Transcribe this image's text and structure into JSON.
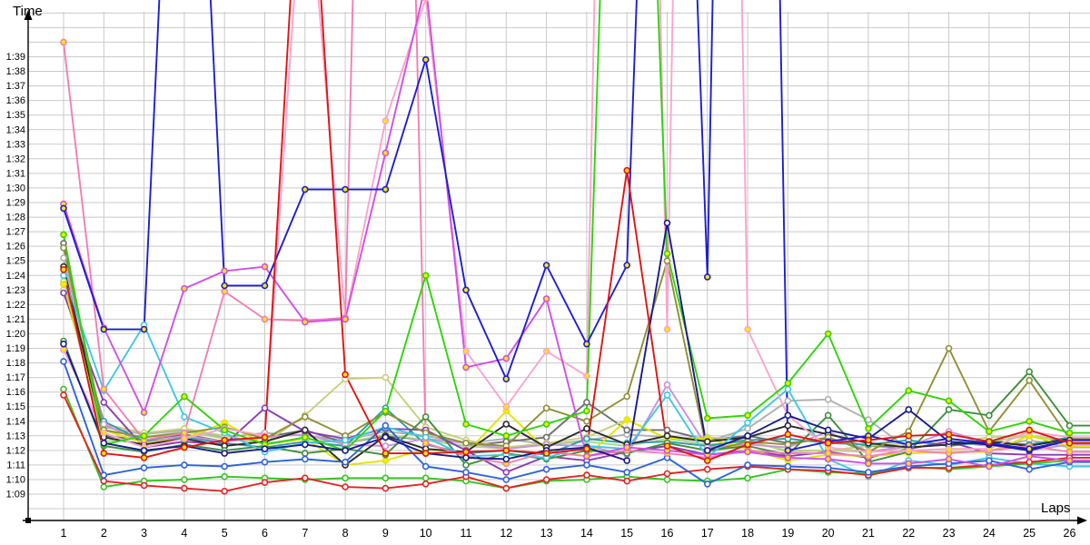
{
  "chart_data": {
    "type": "line",
    "title": "",
    "x_label": "Laps",
    "y_label": "Time",
    "x": [
      1,
      2,
      3,
      4,
      5,
      6,
      7,
      8,
      9,
      10,
      11,
      12,
      13,
      14,
      15,
      16,
      17,
      18,
      19,
      20,
      21,
      22,
      23,
      24,
      25,
      26
    ],
    "x_tick_labels": [
      "1",
      "2",
      "3",
      "4",
      "5",
      "6",
      "7",
      "8",
      "9",
      "10",
      "11",
      "12",
      "13",
      "14",
      "15",
      "16",
      "17",
      "18",
      "19",
      "20",
      "21",
      "22",
      "23",
      "24",
      "25",
      "26"
    ],
    "y_tick_labels": [
      "1:39",
      "1:38",
      "1:37",
      "1:36",
      "1:35",
      "1:34",
      "1:33",
      "1:32",
      "1:31",
      "1:30",
      "1:29",
      "1:28",
      "1:27",
      "1:26",
      "1:25",
      "1:24",
      "1:23",
      "1:22",
      "1:21",
      "1:20",
      "1:19",
      "1:18",
      "1:17",
      "1:16",
      "1:15",
      "1:14",
      "1:13",
      "1:12",
      "1:11",
      "1:10",
      "1:09"
    ],
    "y_min_seconds": 69,
    "y_max_seconds": 102,
    "grid": true,
    "grid_color": "#c9c9c9",
    "axis_color": "#000000",
    "marker_yellow": "#ffe800",
    "marker_white": "#ffffff",
    "legend_position": "none",
    "series": [
      {
        "name": "silver",
        "color": "#b0b0b0",
        "marker": "white",
        "values_seconds": [
          85.2,
          73.6,
          73.1,
          73.4,
          72.9,
          73.2,
          73.0,
          72.7,
          73.3,
          73.0,
          72.5,
          72.8,
          72.4,
          72.7,
          73.1,
          72.9,
          72.6,
          73.5,
          75.4,
          75.5,
          74.1,
          72.1,
          72.6,
          72.3,
          72.7,
          72.2
        ]
      },
      {
        "name": "dark-gray",
        "color": "#6e6e6e",
        "marker": "white",
        "values_seconds": [
          86.2,
          73.0,
          72.7,
          73.1,
          72.6,
          72.9,
          73.4,
          72.5,
          73.0,
          72.7,
          72.3,
          72.6,
          72.9,
          75.3,
          73.4,
          73.4,
          72.7,
          73.0,
          72.5,
          72.8,
          72.3,
          72.2,
          72.4,
          72.7,
          72.3,
          72.9
        ]
      },
      {
        "name": "light-green",
        "color": "#a8d88a",
        "marker": "white",
        "values_seconds": [
          83.6,
          72.6,
          72.9,
          73.3,
          72.8,
          72.5,
          72.8,
          72.5,
          73.1,
          72.7,
          72.3,
          72.1,
          72.4,
          72.6,
          72.3,
          72.8,
          72.4,
          72.6,
          72.0,
          72.0,
          71.9,
          72.2,
          72.4,
          72.6,
          73.0,
          72.7
        ]
      },
      {
        "name": "khaki",
        "color": "#c6cf7a",
        "marker": "white",
        "values_seconds": [
          83.0,
          73.8,
          73.2,
          73.5,
          73.0,
          72.5,
          74.4,
          76.9,
          77.0,
          73.6,
          72.7,
          72.2,
          72.5,
          72.9,
          74.1,
          72.8,
          72.9,
          72.7,
          71.9,
          72.0,
          72.3,
          72.5,
          72.5,
          72.9,
          73.0,
          72.6
        ]
      },
      {
        "name": "teal",
        "color": "#2e9ba8",
        "marker": "white",
        "values_seconds": [
          83.4,
          74.0,
          72.6,
          72.9,
          72.5,
          72.2,
          72.6,
          72.3,
          74.9,
          72.4,
          71.8,
          72.0,
          71.7,
          72.8,
          72.5,
          72.6,
          72.3,
          72.7,
          72.8,
          72.5,
          72.4,
          72.7,
          72.3,
          72.6,
          72.4,
          72.9
        ]
      },
      {
        "name": "orchid",
        "color": "#c98fe0",
        "marker": "white",
        "values_seconds": [
          84.0,
          73.8,
          72.5,
          73.0,
          72.6,
          72.9,
          73.1,
          72.4,
          72.3,
          72.8,
          72.5,
          72.1,
          72.4,
          72.3,
          71.7,
          76.5,
          72.2,
          72.4,
          72.2,
          73.3,
          71.9,
          72.3,
          73.3,
          72.5,
          72.0,
          72.4
        ]
      },
      {
        "name": "purple",
        "color": "#8a3bb5",
        "marker": "white",
        "values_seconds": [
          82.8,
          75.3,
          72.2,
          72.6,
          72.4,
          74.9,
          73.3,
          72.8,
          73.5,
          73.4,
          72.0,
          70.5,
          71.6,
          71.3,
          71.9,
          72.3,
          71.7,
          72.0,
          71.6,
          71.9,
          71.5,
          72.1,
          72.6,
          71.8,
          71.7,
          71.7
        ]
      },
      {
        "name": "yellow",
        "color": "#e3e300",
        "marker": "yellow",
        "values_seconds": [
          83.4,
          73.4,
          72.5,
          72.8,
          73.9,
          72.4,
          72.8,
          71.0,
          71.3,
          72.1,
          71.8,
          74.7,
          72.0,
          71.6,
          74.1,
          72.8,
          72.8,
          72.1,
          71.3,
          71.7,
          71.6,
          71.8,
          71.9,
          71.9,
          73.0,
          72.3
        ]
      },
      {
        "name": "black",
        "color": "#2b2b2b",
        "marker": "white",
        "values_seconds": [
          84.6,
          72.9,
          72.4,
          72.8,
          72.3,
          72.6,
          73.4,
          71.0,
          73.0,
          72.1,
          71.9,
          73.8,
          72.2,
          73.5,
          72.4,
          73.0,
          72.6,
          72.9,
          73.7,
          73.1,
          72.5,
          72.2,
          72.4,
          72.6,
          72.3,
          72.8
        ]
      },
      {
        "name": "olive",
        "color": "#8f8f33",
        "marker": "white",
        "values_seconds": [
          85.9,
          73.4,
          72.9,
          73.2,
          73.6,
          72.8,
          74.3,
          73.0,
          74.6,
          73.2,
          72.5,
          72.3,
          74.9,
          74.0,
          75.7,
          85.0,
          71.9,
          72.6,
          72.4,
          72.9,
          71.9,
          73.3,
          79.0,
          73.3,
          76.8,
          72.8
        ]
      },
      {
        "name": "dark-green",
        "color": "#3d8f3d",
        "marker": "white",
        "values_seconds": [
          79.5,
          72.3,
          71.9,
          72.4,
          72.0,
          72.3,
          71.8,
          72.1,
          71.7,
          74.3,
          71.0,
          71.8,
          71.4,
          72.0,
          71.8,
          72.5,
          72.0,
          72.3,
          71.7,
          74.4,
          71.2,
          71.9,
          74.8,
          74.4,
          77.4,
          73.7
        ]
      },
      {
        "name": "cyan",
        "color": "#3ec8e0",
        "marker": "white",
        "values_seconds": [
          84.0,
          76.1,
          80.6,
          74.3,
          73.2,
          71.9,
          72.5,
          72.7,
          73.6,
          72.9,
          71.6,
          71.7,
          71.5,
          72.3,
          72.1,
          75.8,
          71.5,
          73.9,
          76.2,
          71.4,
          70.2,
          71.3,
          71.0,
          71.5,
          71.1,
          70.9
        ]
      },
      {
        "name": "lime-green",
        "color": "#36c422",
        "marker": "white",
        "values_seconds": [
          76.2,
          69.5,
          69.9,
          70.0,
          70.2,
          70.1,
          70.0,
          70.1,
          70.1,
          70.1,
          69.9,
          69.4,
          69.9,
          70.0,
          70.2,
          70.0,
          69.9,
          70.1,
          70.7,
          70.5,
          70.4,
          70.9,
          70.7,
          70.9,
          71.1,
          71.3
        ]
      },
      {
        "name": "scarlet",
        "color": "#e62222",
        "marker": "white",
        "values_seconds": [
          75.8,
          69.9,
          69.6,
          69.4,
          69.2,
          69.8,
          70.1,
          69.5,
          69.4,
          69.7,
          70.2,
          69.4,
          70.0,
          70.3,
          69.9,
          70.4,
          70.7,
          70.9,
          70.7,
          70.6,
          70.3,
          70.8,
          70.8,
          71.0,
          71.2,
          71.5
        ]
      },
      {
        "name": "royal-blue",
        "color": "#2d62e0",
        "marker": "white",
        "values_seconds": [
          78.1,
          70.3,
          70.8,
          71.0,
          70.9,
          71.2,
          71.4,
          71.2,
          73.7,
          70.9,
          70.5,
          70.0,
          70.7,
          71.0,
          70.5,
          71.5,
          69.7,
          71.0,
          70.9,
          70.8,
          70.5,
          70.9,
          71.1,
          71.3,
          70.7,
          71.2
        ]
      },
      {
        "name": "pink",
        "color": "#f27fb2",
        "marker": "yellow",
        "values_seconds": [
          100.0,
          76.2,
          72.7,
          73.2,
          82.9,
          81.0,
          80.9,
          81.1,
          197.0,
          72.5,
          71.6,
          71.1,
          71.9,
          71.6,
          72.0,
          71.8,
          71.5,
          72.0,
          71.8,
          71.8,
          71.6,
          72.0,
          71.8,
          72.0,
          72.3,
          71.9
        ]
      },
      {
        "name": "rose",
        "color": "#fca4cd",
        "marker": "yellow",
        "values_seconds": [
          78.9,
          73.2,
          72.2,
          72.8,
          73.5,
          73.0,
          114.0,
          81.0,
          94.6,
          103.0,
          78.8,
          75.0,
          78.8,
          77.1,
          210.0,
          80.3,
          240.0,
          80.3,
          74.4,
          72.2,
          71.9,
          72.0,
          72.1,
          72.1,
          73.3,
          72.9
        ]
      },
      {
        "name": "magenta",
        "color": "#cf4fe8",
        "marker": "yellow",
        "values_seconds": [
          88.9,
          80.4,
          74.6,
          83.1,
          84.3,
          84.6,
          80.8,
          81.0,
          92.4,
          104.0,
          77.7,
          78.3,
          82.4,
          71.6,
          72.2,
          72.0,
          71.7,
          71.9,
          71.5,
          71.4,
          71.1,
          71.1,
          71.4,
          70.9,
          71.6,
          71.3
        ]
      },
      {
        "name": "green",
        "color": "#2fd40a",
        "marker": "yellow",
        "values_seconds": [
          86.8,
          72.4,
          73.0,
          75.7,
          73.4,
          72.4,
          72.9,
          72.0,
          74.7,
          84.0,
          73.8,
          73.0,
          73.8,
          74.7,
          160.0,
          85.5,
          74.2,
          74.4,
          76.6,
          80.0,
          73.5,
          76.1,
          75.4,
          73.3,
          74.0,
          73.2
        ]
      },
      {
        "name": "navy",
        "color": "#1a1a8c",
        "marker": "white",
        "values_seconds": [
          79.3,
          72.5,
          72.0,
          72.3,
          71.8,
          72.1,
          72.4,
          72.0,
          72.9,
          71.8,
          71.5,
          71.4,
          72.0,
          72.2,
          71.3,
          87.6,
          72.0,
          73.0,
          74.4,
          73.4,
          72.8,
          74.8,
          72.6,
          72.4,
          72.0,
          72.7
        ]
      },
      {
        "name": "blue",
        "color": "#1e1ed2",
        "marker": "yellow",
        "values_seconds": [
          88.6,
          80.3,
          80.3,
          140.0,
          83.3,
          83.3,
          89.9,
          89.9,
          89.9,
          98.8,
          83.0,
          76.9,
          84.7,
          79.3,
          84.7,
          160.0,
          83.9,
          230.0,
          72.0,
          72.6,
          73.0,
          72.4,
          72.8,
          72.5,
          72.1,
          72.7
        ]
      },
      {
        "name": "red",
        "color": "#e11414",
        "marker": "yellow",
        "values_seconds": [
          84.4,
          71.8,
          71.5,
          72.2,
          72.7,
          72.9,
          120.0,
          77.2,
          71.8,
          71.8,
          71.9,
          72.0,
          71.8,
          72.1,
          91.2,
          72.3,
          71.3,
          72.4,
          73.1,
          72.5,
          72.7,
          73.0,
          73.1,
          72.6,
          73.4,
          72.5
        ]
      }
    ]
  }
}
